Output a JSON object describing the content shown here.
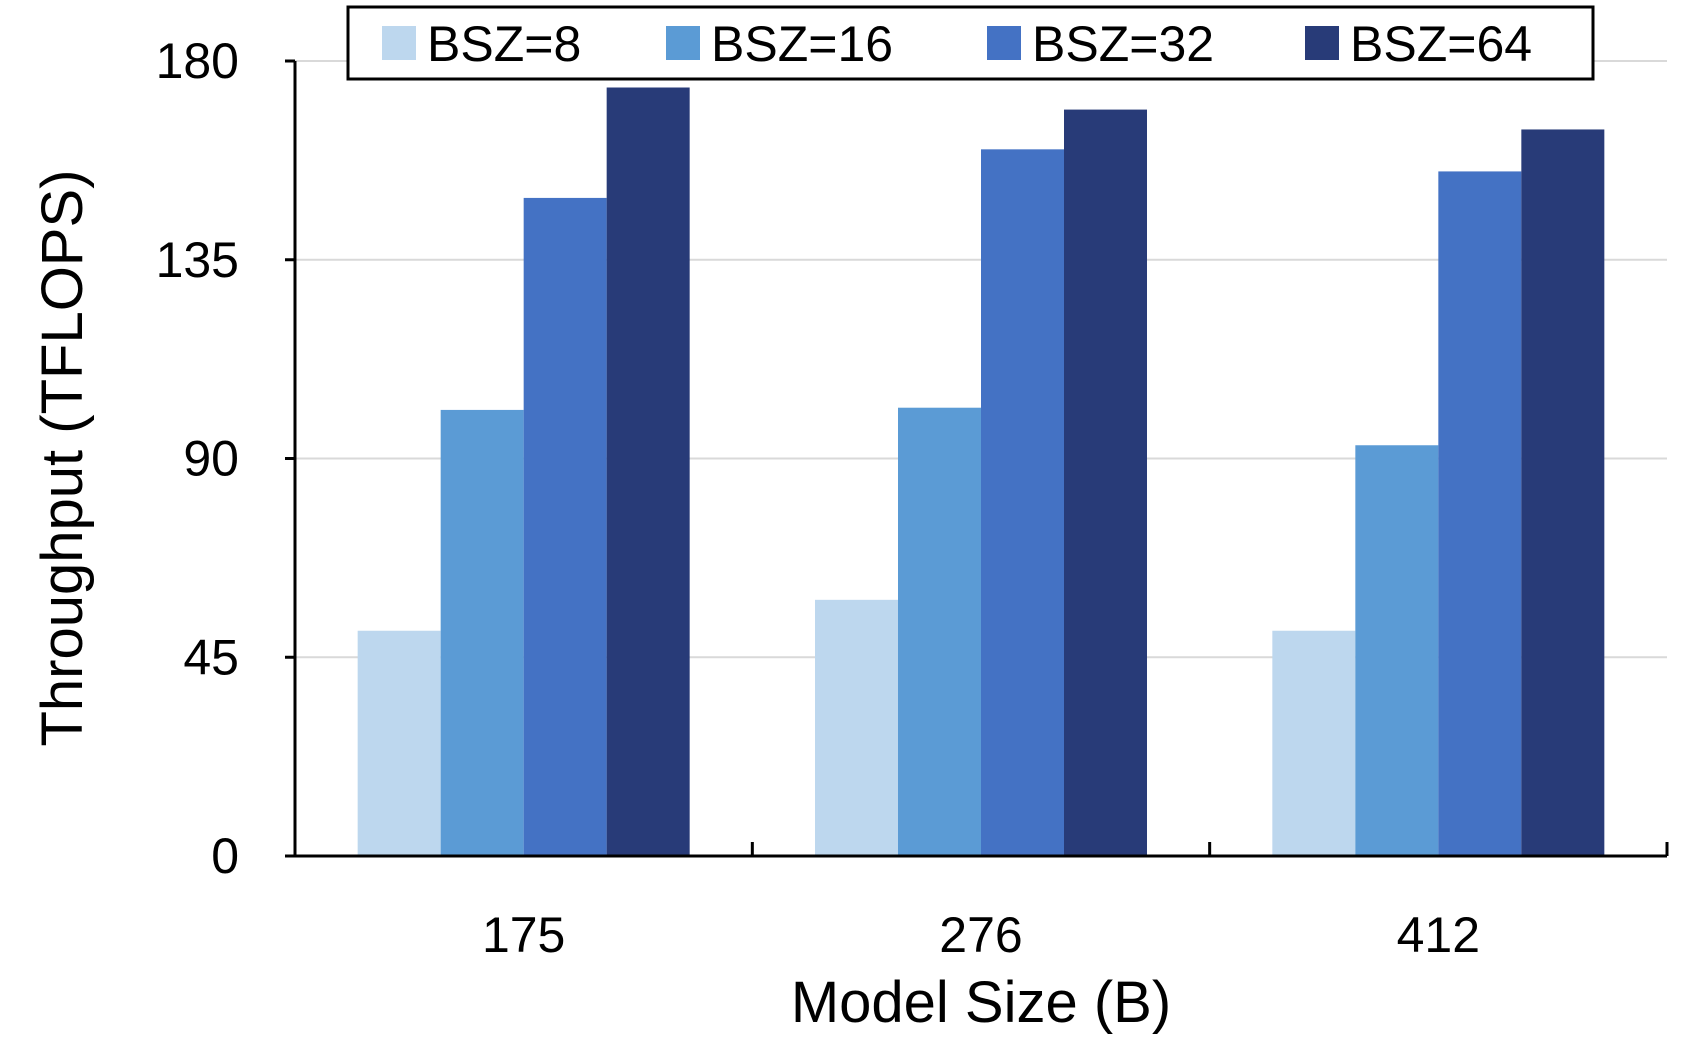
{
  "chart_data": {
    "type": "bar",
    "title": "",
    "xlabel": "Model Size (B)",
    "ylabel": "Throughput (TFLOPS)",
    "categories": [
      "175",
      "276",
      "412"
    ],
    "series": [
      {
        "name": "BSZ=8",
        "values": [
          51,
          58,
          51
        ],
        "color": "#bdd7ee"
      },
      {
        "name": "BSZ=16",
        "values": [
          101,
          101.5,
          93
        ],
        "color": "#5b9bd5"
      },
      {
        "name": "BSZ=32",
        "values": [
          149,
          160,
          155
        ],
        "color": "#4472c4"
      },
      {
        "name": "BSZ=64",
        "values": [
          174,
          169,
          164.5
        ],
        "color": "#283b78"
      }
    ],
    "ylim": [
      0,
      180
    ],
    "yticks": [
      "0",
      "45",
      "90",
      "135",
      "180"
    ],
    "grid": true,
    "legend_position": "top"
  }
}
